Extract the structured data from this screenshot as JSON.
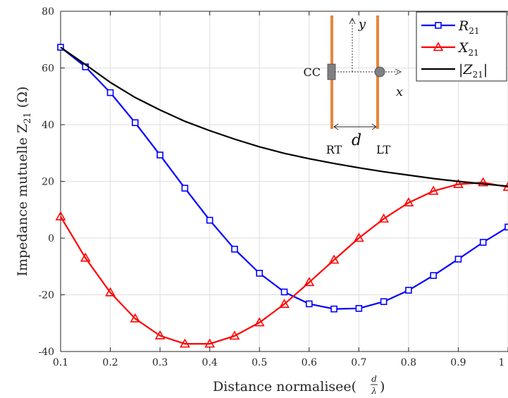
{
  "chart_data": {
    "type": "line",
    "xlabel_main": "Distance normalisee(",
    "xlabel_frac_num": "d",
    "xlabel_frac_den": "λ",
    "xlabel_close": ")",
    "ylabel": "Impedance mutuelle Z",
    "ylabel_sub": "21",
    "ylabel_unit": " (Ω)",
    "xlim": [
      0.1,
      1.0
    ],
    "ylim": [
      -40,
      80
    ],
    "xticks": [
      "0.1",
      "0.2",
      "0.3",
      "0.4",
      "0.5",
      "0.6",
      "0.7",
      "0.8",
      "0.9",
      "1"
    ],
    "yticks": [
      "-40",
      "-20",
      "0",
      "20",
      "40",
      "60",
      "80"
    ],
    "grid": true,
    "legend_position": "top-right",
    "x": [
      0.1,
      0.15,
      0.2,
      0.25,
      0.3,
      0.35,
      0.4,
      0.45,
      0.5,
      0.55,
      0.6,
      0.65,
      0.7,
      0.75,
      0.8,
      0.85,
      0.9,
      0.95,
      1.0
    ],
    "series": [
      {
        "name": "R",
        "name_sub": "21",
        "color": "#0000ff",
        "marker": "square",
        "values": [
          67.3,
          60.4,
          51.3,
          40.7,
          29.3,
          17.6,
          6.3,
          -3.9,
          -12.4,
          -19.0,
          -23.2,
          -25.0,
          -24.8,
          -22.4,
          -18.4,
          -13.2,
          -7.4,
          -1.5,
          3.9
        ]
      },
      {
        "name": "X",
        "name_sub": "21",
        "color": "#ff0000",
        "marker": "triangle",
        "values": [
          7.6,
          -7.0,
          -19.2,
          -28.4,
          -34.4,
          -37.3,
          -37.3,
          -34.5,
          -29.8,
          -23.3,
          -15.6,
          -7.7,
          0.0,
          6.8,
          12.5,
          16.6,
          19.0,
          19.6,
          18.0
        ]
      },
      {
        "name": "|Z",
        "name_sub": "21",
        "name_close": "|",
        "color": "#000000",
        "marker": "none",
        "values": [
          67.3,
          61.2,
          54.9,
          49.6,
          45.2,
          41.2,
          37.9,
          34.9,
          32.2,
          29.9,
          28.0,
          26.3,
          24.8,
          23.4,
          22.2,
          21.0,
          20.0,
          19.1,
          18.3
        ]
      }
    ],
    "inset": {
      "cc_label": "CC",
      "rt_label": "RT",
      "lt_label": "LT",
      "d_label": "d",
      "x_label": "x",
      "y_label": "y",
      "element_color": "#e8853c",
      "marker_color": "#808080"
    }
  }
}
